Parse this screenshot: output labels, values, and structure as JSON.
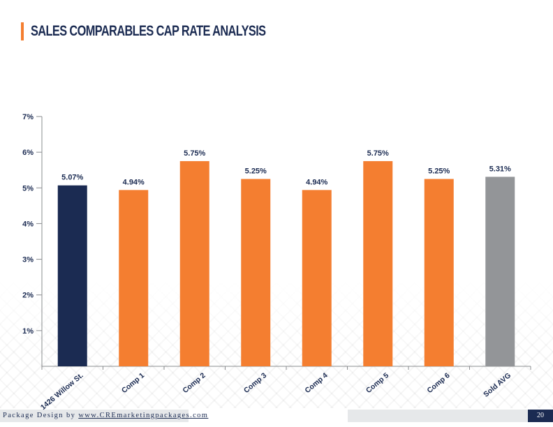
{
  "header": {
    "title": "SALES COMPARABLES CAP RATE ANALYSIS"
  },
  "footer": {
    "credit_prefix": "Package Design by ",
    "credit_link": "www.CREmarketingpackages.com",
    "page_number": "20"
  },
  "colors": {
    "navy": "#1b2b52",
    "orange": "#f47e30",
    "gray": "#939598"
  },
  "chart_data": {
    "type": "bar",
    "categories": [
      "1426 Willow St.",
      "Comp 1",
      "Comp 2",
      "Comp 3",
      "Comp 4",
      "Comp 5",
      "Comp 6",
      "Sold AVG"
    ],
    "values": [
      5.07,
      4.94,
      5.75,
      5.25,
      4.94,
      5.75,
      5.25,
      5.31
    ],
    "data_labels": [
      "5.07%",
      "4.94%",
      "5.75%",
      "5.25%",
      "4.94%",
      "5.75%",
      "5.25%",
      "5.31%"
    ],
    "bar_colors": [
      "#1b2b52",
      "#f47e30",
      "#f47e30",
      "#f47e30",
      "#f47e30",
      "#f47e30",
      "#f47e30",
      "#939598"
    ],
    "ylim": [
      0,
      7
    ],
    "yticks": [
      1,
      2,
      3,
      4,
      5,
      6,
      7
    ],
    "ytick_labels": [
      "1%",
      "2%",
      "3%",
      "4%",
      "5%",
      "6%",
      "7%"
    ],
    "grid": false,
    "legend": "none"
  }
}
